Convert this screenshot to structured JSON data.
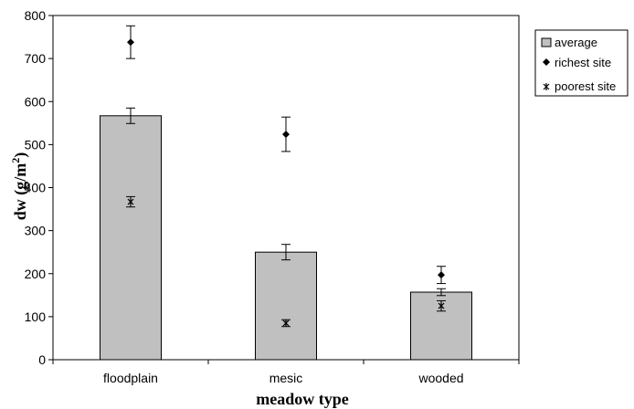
{
  "chart_data": {
    "type": "bar",
    "categories": [
      "floodplain",
      "mesic",
      "wooded"
    ],
    "xlabel": "meadow type",
    "ylabel": "dw (g/m²)",
    "ylabel_base": "dw (g/m",
    "ylabel_sup": "2",
    "ylabel_close": ")",
    "ylim": [
      0,
      800
    ],
    "yticks": [
      0,
      100,
      200,
      300,
      400,
      500,
      600,
      700,
      800
    ],
    "grid": false,
    "legend_position": "right",
    "series": [
      {
        "name": "average",
        "kind": "bar",
        "values": [
          567,
          250,
          157
        ],
        "errors": [
          18,
          18,
          8
        ],
        "color": "#c0c0c0"
      },
      {
        "name": "richest site",
        "kind": "diamond",
        "values": [
          738,
          524,
          197
        ],
        "errors": [
          38,
          40,
          20
        ],
        "color": "#000000"
      },
      {
        "name": "poorest site",
        "kind": "star",
        "values": [
          367,
          85,
          125
        ],
        "errors": [
          12,
          8,
          12
        ],
        "color": "#000000"
      }
    ]
  }
}
